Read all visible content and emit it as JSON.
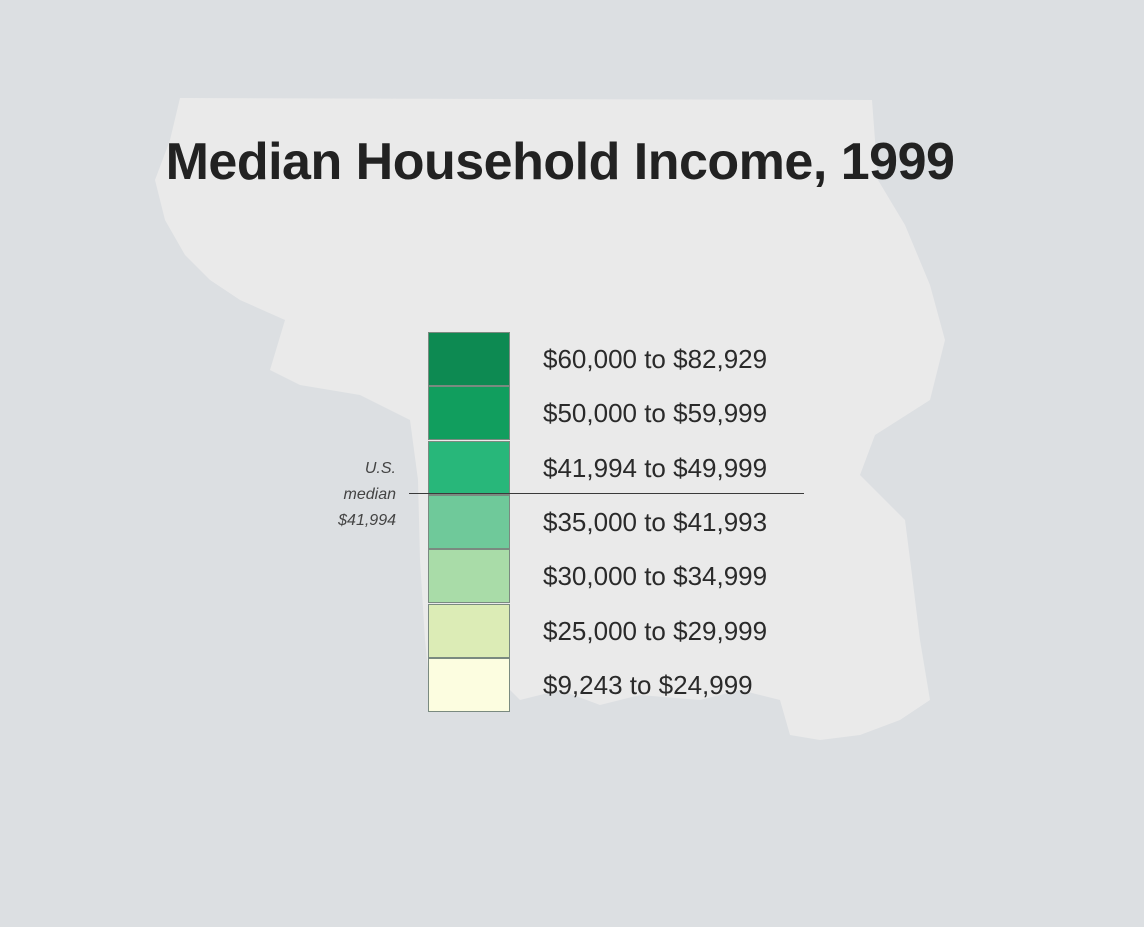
{
  "title": "Median Household Income, 1999",
  "colors": {
    "background": "#dcdfe2",
    "map_silhouette": "#eaeaea",
    "title_text": "#222222"
  },
  "legend": {
    "classes": [
      {
        "label": "$60,000 to $82,929",
        "min": 60000,
        "max": 82929,
        "color": "#0d8a52"
      },
      {
        "label": "$50,000 to $59,999",
        "min": 50000,
        "max": 59999,
        "color": "#119e5e"
      },
      {
        "label": "$41,994 to $49,999",
        "min": 41994,
        "max": 49999,
        "color": "#28b77a"
      },
      {
        "label": "$35,000 to $41,993",
        "min": 35000,
        "max": 41993,
        "color": "#6fc99a"
      },
      {
        "label": "$30,000 to $34,999",
        "min": 30000,
        "max": 34999,
        "color": "#a9dca8"
      },
      {
        "label": "$25,000 to $29,999",
        "min": 25000,
        "max": 29999,
        "color": "#dcecb6"
      },
      {
        "label": "$9,243 to $24,999",
        "min": 9243,
        "max": 24999,
        "color": "#fcfde0"
      }
    ],
    "median_note": {
      "line1": "U.S.",
      "line2": "median",
      "line3": "$41,994",
      "value": 41994
    }
  }
}
